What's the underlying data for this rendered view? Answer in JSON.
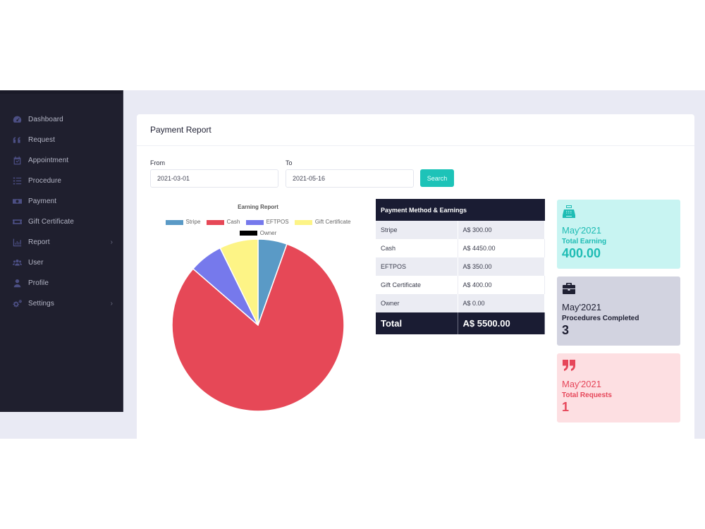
{
  "sidebar": {
    "items": [
      {
        "label": "Dashboard",
        "icon": "dashboard-gauge-icon",
        "has_chevron": false
      },
      {
        "label": "Request",
        "icon": "quote-icon",
        "has_chevron": false
      },
      {
        "label": "Appointment",
        "icon": "calendar-check-icon",
        "has_chevron": false
      },
      {
        "label": "Procedure",
        "icon": "list-check-icon",
        "has_chevron": false
      },
      {
        "label": "Payment",
        "icon": "money-bill-icon",
        "has_chevron": false
      },
      {
        "label": "Gift Certificate",
        "icon": "ticket-icon",
        "has_chevron": false
      },
      {
        "label": "Report",
        "icon": "bar-chart-icon",
        "has_chevron": true
      },
      {
        "label": "User",
        "icon": "users-icon",
        "has_chevron": false
      },
      {
        "label": "Profile",
        "icon": "user-icon",
        "has_chevron": false
      },
      {
        "label": "Settings",
        "icon": "cogs-icon",
        "has_chevron": true
      }
    ],
    "chevron": "›"
  },
  "card": {
    "title": "Payment Report"
  },
  "filters": {
    "from_label": "From",
    "from_value": "2021-03-01",
    "to_label": "To",
    "to_value": "2021-05-16",
    "search_label": "Search"
  },
  "chart_data": {
    "type": "pie",
    "title": "Earning Report",
    "categories": [
      "Stripe",
      "Cash",
      "EFTPOS",
      "Gift Certificate",
      "Owner"
    ],
    "values": [
      300,
      4450,
      350,
      400,
      0
    ],
    "colors": [
      "#5a9ac6",
      "#e64857",
      "#7679ec",
      "#fdf486",
      "#000000"
    ],
    "legend_position": "top"
  },
  "table": {
    "header": "Payment Method & Earnings",
    "rows": [
      {
        "method": "Stripe",
        "amount": "A$ 300.00"
      },
      {
        "method": "Cash",
        "amount": "A$ 4450.00"
      },
      {
        "method": "EFTPOS",
        "amount": "A$ 350.00"
      },
      {
        "method": "Gift Certificate",
        "amount": "A$ 400.00"
      },
      {
        "method": "Owner",
        "amount": "A$ 0.00"
      }
    ],
    "total_label": "Total",
    "total_value": "A$ 5500.00"
  },
  "stats": [
    {
      "icon": "cash-register-icon",
      "month": "May'2021",
      "label": "Total Earning",
      "value": "400.00",
      "bg": "#c8f4f2",
      "color": "#1ebcb4"
    },
    {
      "icon": "briefcase-icon",
      "month": "May'2021",
      "label": "Procedures Completed",
      "value": "3",
      "bg": "#d2d3e0",
      "color": "#1f2033"
    },
    {
      "icon": "quote-right-icon",
      "month": "May'2021",
      "label": "Total Requests",
      "value": "1",
      "bg": "#fddfe2",
      "color": "#e6475a"
    }
  ]
}
